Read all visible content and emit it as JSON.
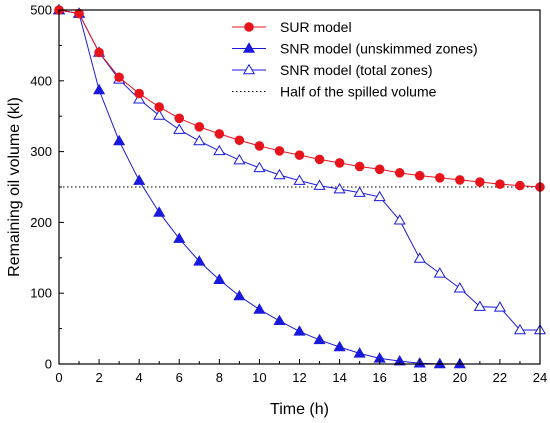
{
  "chart_data": {
    "type": "line",
    "title": "",
    "xlabel": "Time (h)",
    "ylabel": "Remaining oil volume (kl)",
    "xlim": [
      0,
      24
    ],
    "ylim": [
      0,
      500
    ],
    "xticks": [
      0,
      2,
      4,
      6,
      8,
      10,
      12,
      14,
      16,
      18,
      20,
      22,
      24
    ],
    "yticks": [
      0,
      100,
      200,
      300,
      400,
      500
    ],
    "grid": false,
    "legend_position": "top-right",
    "series": [
      {
        "name": "SUR model",
        "color": "#e8141c",
        "marker": "circle-filled",
        "x": [
          0,
          1,
          2,
          3,
          4,
          5,
          6,
          7,
          8,
          9,
          10,
          11,
          12,
          13,
          14,
          15,
          16,
          17,
          18,
          19,
          20,
          21,
          22,
          23,
          24
        ],
        "values": [
          500,
          495,
          440,
          405,
          382,
          363,
          347,
          335,
          325,
          316,
          308,
          301,
          295,
          289,
          284,
          279,
          275,
          270,
          266,
          263,
          260,
          257,
          254,
          252,
          250
        ]
      },
      {
        "name": "SNR model (unskimmed zones)",
        "color": "#1a1adc",
        "marker": "triangle-filled",
        "x": [
          0,
          1,
          2,
          3,
          4,
          5,
          6,
          7,
          8,
          9,
          10,
          11,
          12,
          13,
          14,
          15,
          16,
          17,
          18,
          19,
          20
        ],
        "values": [
          500,
          495,
          387,
          315,
          259,
          214,
          177,
          145,
          119,
          96,
          77,
          61,
          46,
          34,
          24,
          15,
          8,
          4,
          1,
          0,
          0
        ]
      },
      {
        "name": "SNR model (total zones)",
        "color": "#1a1adc",
        "marker": "triangle-open",
        "x": [
          0,
          1,
          2,
          3,
          4,
          5,
          6,
          7,
          8,
          9,
          10,
          11,
          12,
          13,
          14,
          15,
          16,
          17,
          18,
          19,
          20,
          21,
          22,
          23,
          24
        ],
        "values": [
          500,
          495,
          440,
          402,
          374,
          351,
          331,
          315,
          301,
          288,
          277,
          267,
          259,
          252,
          247,
          242,
          236,
          203,
          149,
          128,
          107,
          81,
          80,
          48,
          48
        ]
      },
      {
        "name": "Half of the spilled volume",
        "color": "#000000",
        "style": "dotted",
        "x": [
          0,
          24
        ],
        "values": [
          250,
          250
        ]
      }
    ]
  }
}
